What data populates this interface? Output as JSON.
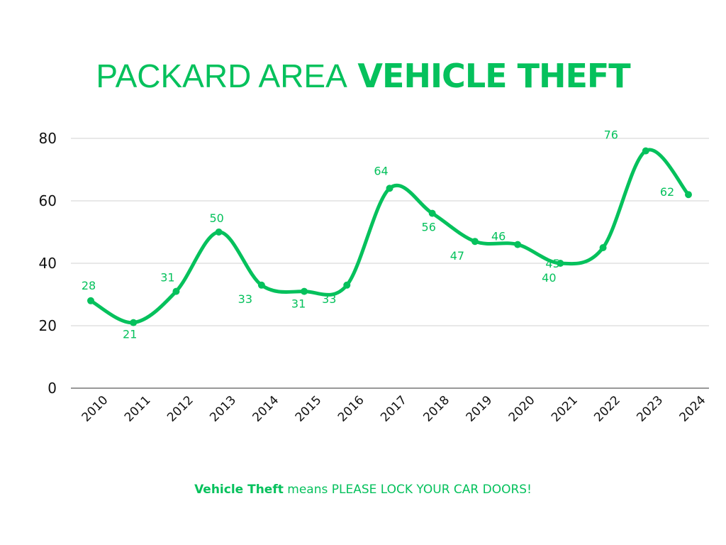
{
  "title": {
    "light": "PACKARD AREA",
    "bold": "VEHICLE THEFT"
  },
  "footer": {
    "bold": "Vehicle Theft",
    "rest": "means PLEASE LOCK YOUR CAR DOORS!"
  },
  "colors": {
    "accent": "#05c15c",
    "grid": "#d0d0d0",
    "axis": "#777777",
    "tick_text": "#111111"
  },
  "chart_data": {
    "type": "line",
    "title": "PACKARD AREA VEHICLE THEFT",
    "xlabel": "",
    "ylabel": "",
    "categories": [
      "2010",
      "2011",
      "2012",
      "2013",
      "2014",
      "2015",
      "2016",
      "2017",
      "2018",
      "2019",
      "2020",
      "2021",
      "2022",
      "2023",
      "2024"
    ],
    "series": [
      {
        "name": "Vehicle Theft",
        "values": [
          28,
          21,
          31,
          50,
          33,
          31,
          33,
          64,
          56,
          47,
          46,
          40,
          45,
          76,
          62
        ]
      }
    ],
    "ylim": [
      0,
      80
    ],
    "yticks": [
      0,
      20,
      40,
      60,
      80
    ],
    "grid": true,
    "legend": "none",
    "smooth": true,
    "data_labels": true
  }
}
